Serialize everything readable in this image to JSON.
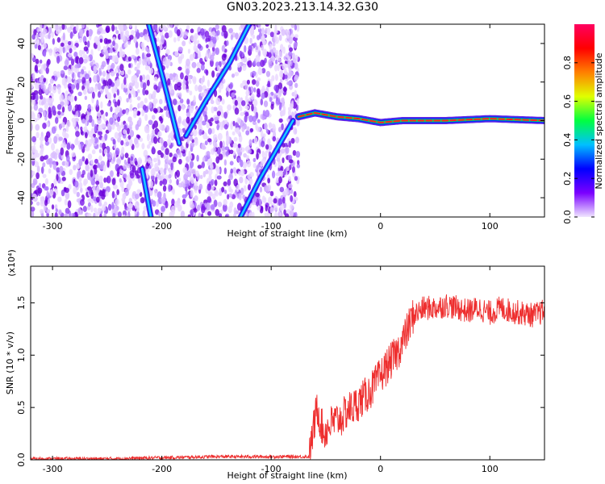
{
  "page_title": "GN03.2023.213.14.32.G30",
  "colors": {
    "snr_line": "#ee2e2e",
    "axis": "#000000",
    "spectrum_cloud": "#8a3cf0",
    "spectrum_ridge": "#20c8ff",
    "spectrum_core": "#ff2020"
  },
  "chart_data": [
    {
      "type": "heatmap",
      "title": "GN03.2023.213.14.32.G30",
      "xlabel": "Height of straight line (km)",
      "ylabel": "Frequency (Hz)",
      "xlim": [
        -320,
        150
      ],
      "ylim": [
        -50,
        50
      ],
      "x_ticks": [
        -300,
        -200,
        -100,
        0,
        100
      ],
      "y_ticks": [
        -40,
        -20,
        0,
        20,
        40
      ],
      "x_tick_labels": [
        "-300",
        "-200",
        "-100",
        "0",
        "100"
      ],
      "y_tick_labels": [
        "-40",
        "-20",
        "0",
        "20",
        "40"
      ],
      "noise_region": [
        -320,
        -75
      ],
      "features": [
        {
          "name": "descending trace",
          "points": [
            [
              -212,
              50
            ],
            [
              -198,
              20
            ],
            [
              -184,
              -12
            ]
          ]
        },
        {
          "name": "ascending trace",
          "points": [
            [
              -178,
              -8
            ],
            [
              -160,
              10
            ],
            [
              -138,
              30
            ],
            [
              -120,
              50
            ]
          ]
        },
        {
          "name": "lower descending trace",
          "points": [
            [
              -218,
              -25
            ],
            [
              -210,
              -50
            ]
          ]
        },
        {
          "name": "lower ascending trace",
          "points": [
            [
              -128,
              -50
            ],
            [
              -110,
              -30
            ],
            [
              -90,
              -10
            ],
            [
              -80,
              0
            ]
          ]
        },
        {
          "name": "main line",
          "points": [
            [
              -75,
              2
            ],
            [
              -60,
              4
            ],
            [
              -40,
              2
            ],
            [
              -20,
              1
            ],
            [
              0,
              -1
            ],
            [
              20,
              0
            ],
            [
              60,
              0
            ],
            [
              100,
              1
            ],
            [
              150,
              0
            ]
          ]
        }
      ],
      "colorbar": {
        "label": "Normalized spectral amplitude",
        "range": [
          0,
          1
        ],
        "ticks": [
          0.0,
          0.2,
          0.4,
          0.6,
          0.8
        ],
        "tick_labels": [
          "0.0",
          "0.2",
          "0.4",
          "0.6",
          "0.8"
        ],
        "colormap_stops": [
          "#f0e6ff",
          "#7a00ff",
          "#0000ff",
          "#00c0ff",
          "#00ff40",
          "#e0ff00",
          "#ff8000",
          "#ff0000",
          "#ff0060"
        ]
      }
    },
    {
      "type": "line",
      "xlabel": "Height of straight line (km)",
      "ylabel": "SNR (10 * v/v)",
      "y_multiplier": "(x10⁴)",
      "xlim": [
        -320,
        150
      ],
      "ylim": [
        0,
        1.85
      ],
      "x_ticks": [
        -300,
        -200,
        -100,
        0,
        100
      ],
      "y_ticks": [
        0.0,
        0.5,
        1.0,
        1.5
      ],
      "x_tick_labels": [
        "-300",
        "-200",
        "-100",
        "0",
        "100"
      ],
      "y_tick_labels": [
        "0.0",
        "0.5",
        "1.0",
        "1.5"
      ],
      "series": [
        {
          "color": "#ee2e2e",
          "x": [
            -320,
            -250,
            -200,
            -150,
            -100,
            -80,
            -65,
            -62,
            -58,
            -52,
            -45,
            -40,
            -35,
            -30,
            -25,
            -20,
            -15,
            -10,
            -5,
            0,
            5,
            10,
            15,
            20,
            25,
            30,
            40,
            50,
            60,
            70,
            80,
            90,
            100,
            110,
            120,
            130,
            140,
            150
          ],
          "values": [
            0.01,
            0.01,
            0.02,
            0.03,
            0.03,
            0.03,
            0.03,
            0.25,
            0.5,
            0.25,
            0.35,
            0.38,
            0.4,
            0.48,
            0.5,
            0.55,
            0.6,
            0.65,
            0.72,
            0.8,
            0.88,
            0.95,
            1.02,
            1.12,
            1.25,
            1.38,
            1.45,
            1.45,
            1.48,
            1.45,
            1.42,
            1.45,
            1.4,
            1.45,
            1.42,
            1.4,
            1.38,
            1.42
          ]
        }
      ]
    }
  ]
}
